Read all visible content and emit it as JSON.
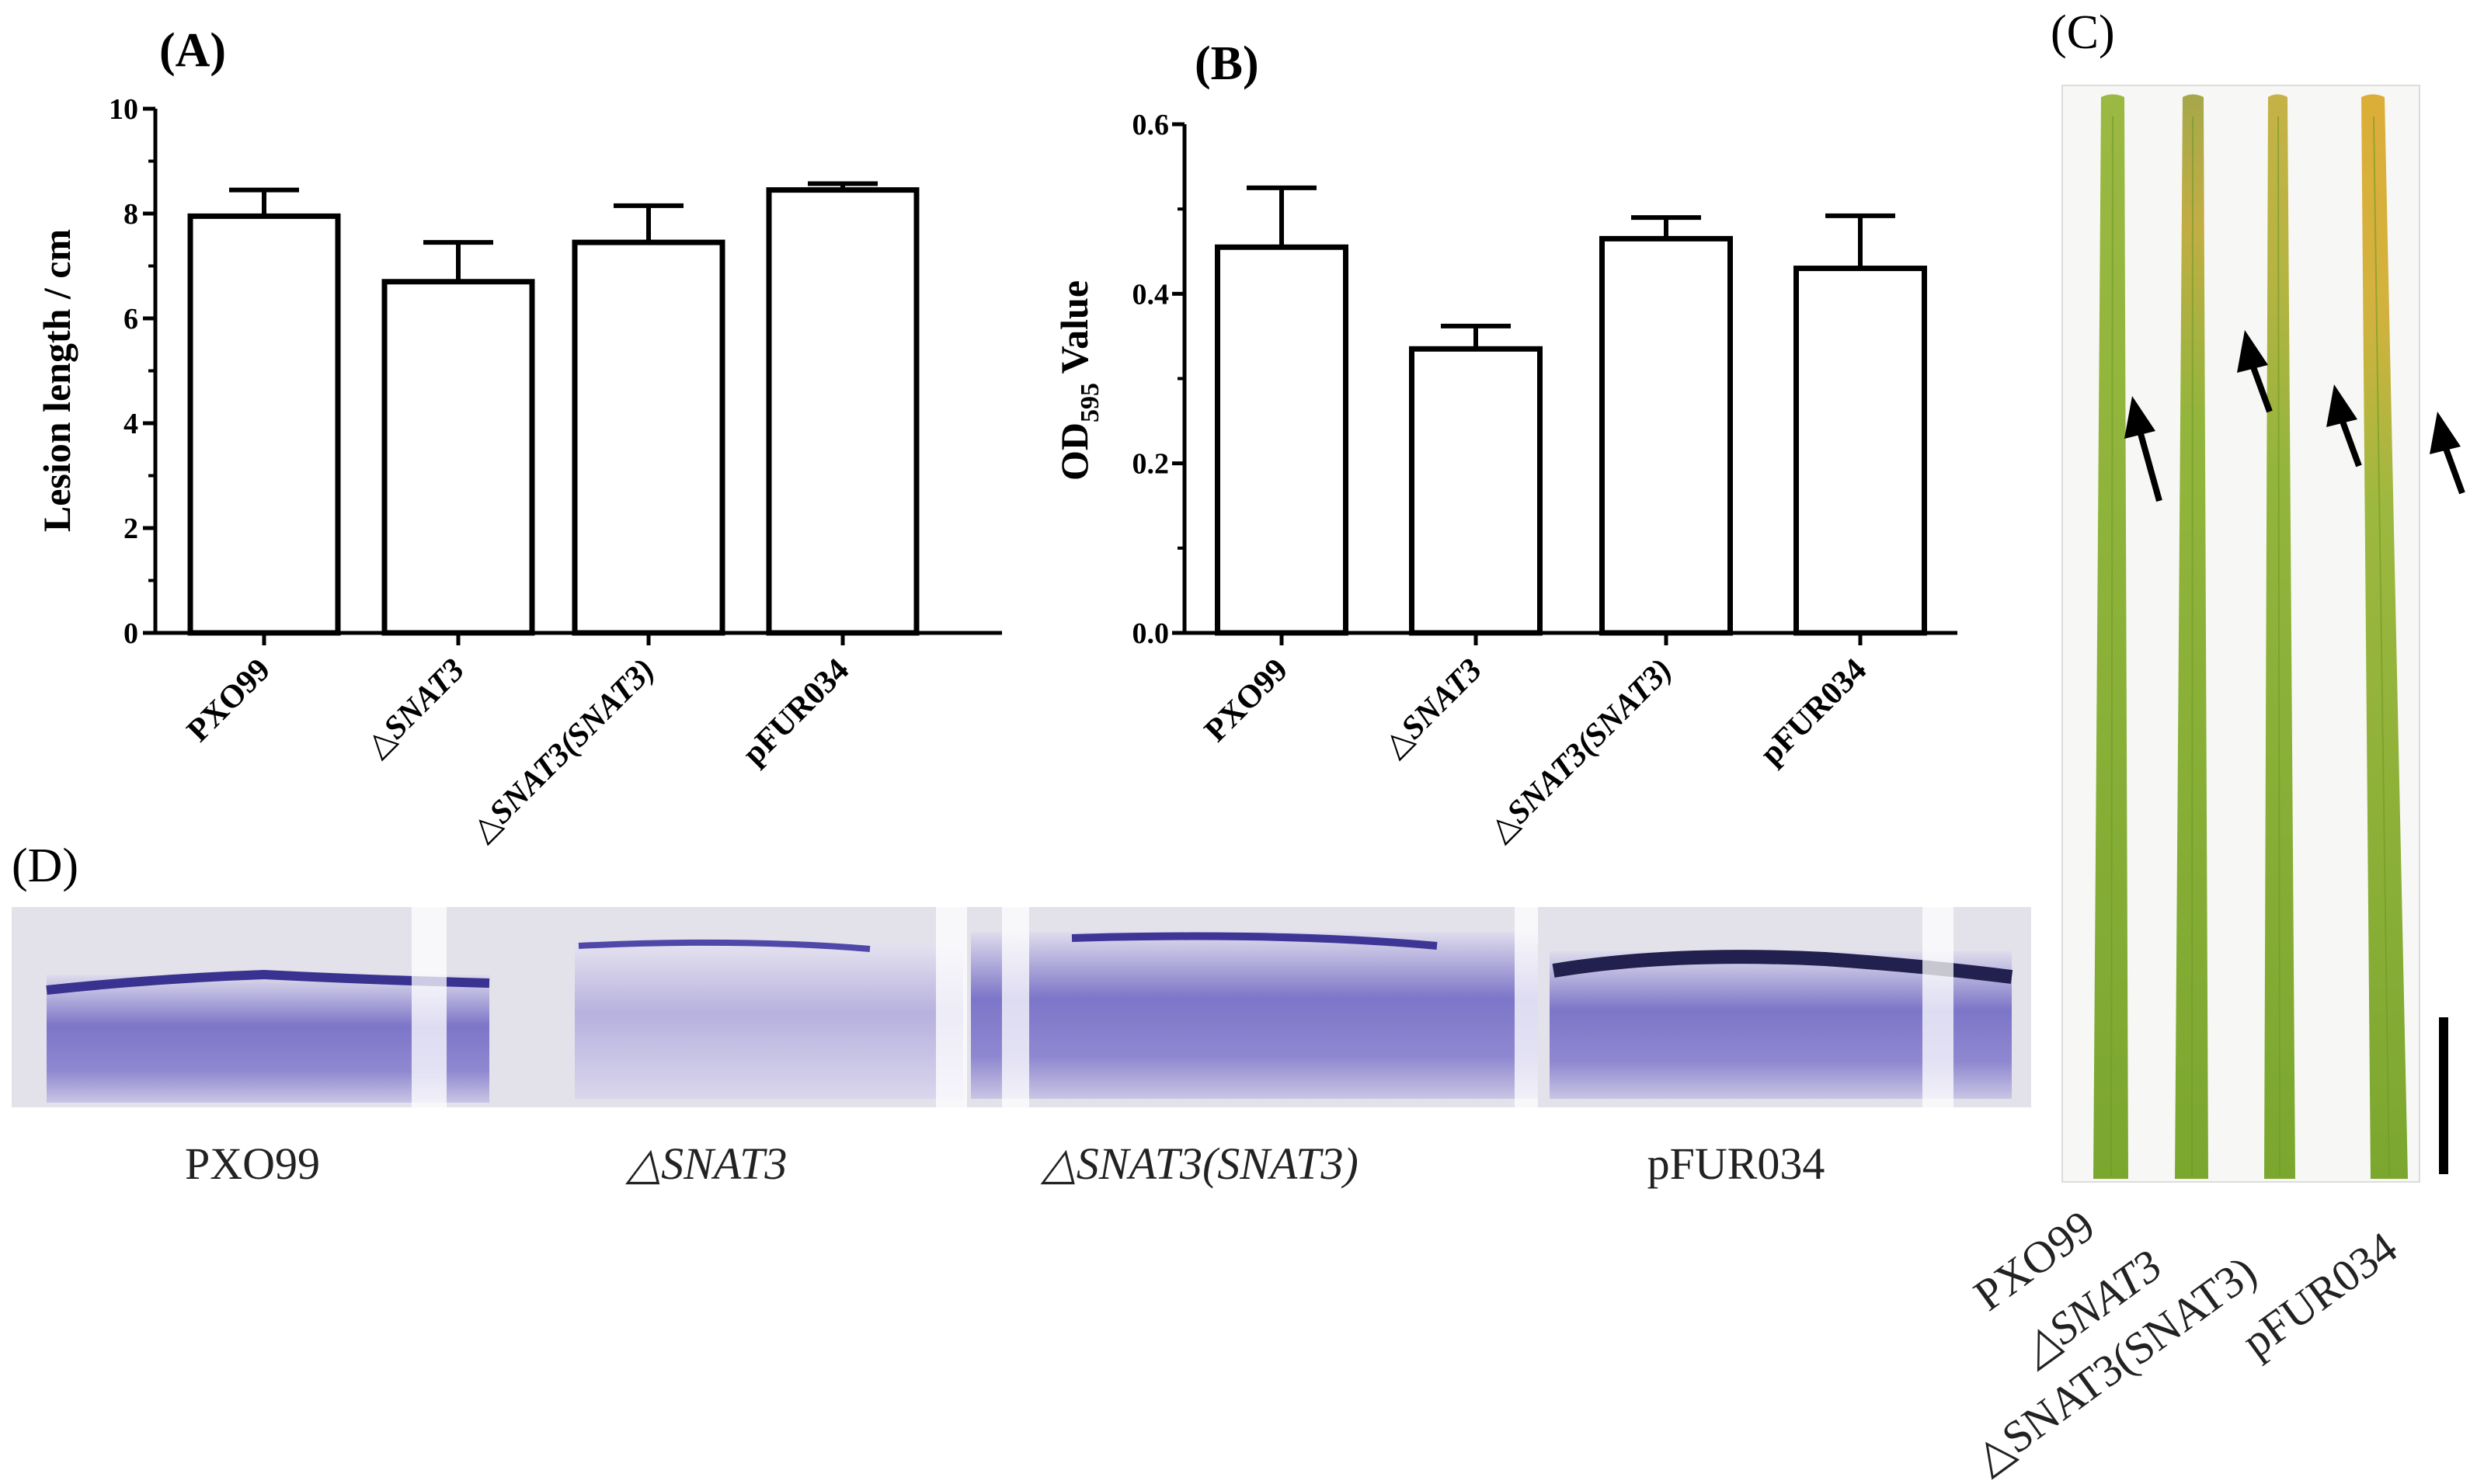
{
  "figure": {
    "panels": {
      "A": "(A)",
      "B": "(B)",
      "C": "(C)",
      "D": "(D)"
    },
    "strain_labels": {
      "wt": "PXO99",
      "mut_symbol": "△",
      "mut": "SNAT3",
      "comp_symbol": "△",
      "comp": "SNAT3(SNAT3)",
      "vec": "pFUR034"
    },
    "panel_C_labels": {
      "wt": "PXO99",
      "mut": "△SNAT3",
      "comp": "△SNAT3(SNAT3)",
      "vec": "pFUR034"
    },
    "panel_D_labels": {
      "wt": "PXO99",
      "mut": "△SNAT3",
      "comp": "△SNAT3(SNAT3)",
      "vec": "pFUR034"
    },
    "colors": {
      "leaf_green": "#8db33a",
      "leaf_yellow": "#d8b030",
      "crystal_violet": "#6a64c0",
      "arrow": "#000000"
    }
  },
  "chart_data": [
    {
      "type": "bar",
      "panel": "A",
      "categories": [
        "PXO99",
        "△SNAT3",
        "△SNAT3(SNAT3)",
        "pFUR034"
      ],
      "values": [
        7.95,
        6.7,
        7.45,
        8.45
      ],
      "errors": [
        0.5,
        0.75,
        0.7,
        0.12
      ],
      "ylabel": "Lesion length / cm",
      "ylim": [
        0,
        10
      ],
      "yticks": [
        "0",
        "2",
        "4",
        "6",
        "8",
        "10"
      ],
      "ytick_values": [
        0,
        2,
        4,
        6,
        8,
        10
      ],
      "grid": false
    },
    {
      "type": "bar",
      "panel": "B",
      "categories": [
        "PXO99",
        "△SNAT3",
        "△SNAT3(SNAT3)",
        "pFUR034"
      ],
      "values": [
        0.455,
        0.335,
        0.465,
        0.43
      ],
      "errors": [
        0.07,
        0.027,
        0.025,
        0.062
      ],
      "ylabel_main": "OD",
      "ylabel_sub": "595",
      "ylabel_rest": " Value",
      "ylim": [
        0,
        0.6
      ],
      "yticks": [
        "0.0",
        "0.2",
        "0.4",
        "0.6"
      ],
      "ytick_values": [
        0,
        0.2,
        0.4,
        0.6
      ],
      "grid": false
    }
  ]
}
